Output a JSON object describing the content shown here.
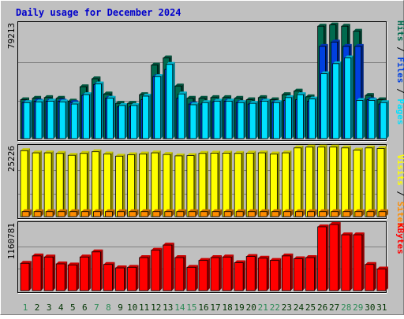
{
  "title": "Daily usage for December 2024",
  "colors": {
    "background": "#c0c0c0",
    "title": "#0000cc",
    "grid": "#808080",
    "hits": "#006a4e",
    "files": "#0040e0",
    "pages": "#00e0ff",
    "visits": "#ffff00",
    "sites": "#ff8c00",
    "kbytes": "#ff0000",
    "day_normal": "#003300",
    "day_weekend": "#2e8b57"
  },
  "chart_data": [
    {
      "type": "bar",
      "name": "usage",
      "ymax_label": "79213",
      "ylim": [
        0,
        79213
      ],
      "legend": [
        "Pages",
        "Files",
        "Hits"
      ],
      "x": [
        "1",
        "2",
        "3",
        "4",
        "5",
        "6",
        "7",
        "8",
        "9",
        "10",
        "11",
        "12",
        "13",
        "14",
        "15",
        "16",
        "17",
        "18",
        "19",
        "20",
        "21",
        "22",
        "23",
        "24",
        "25",
        "26",
        "27",
        "28",
        "29",
        "30",
        "31"
      ],
      "series": [
        {
          "name": "Hits",
          "values": [
            27000,
            28000,
            28500,
            28000,
            26000,
            36000,
            41500,
            31000,
            24500,
            24500,
            30500,
            51000,
            56000,
            36500,
            28000,
            28000,
            28500,
            28500,
            28000,
            27000,
            28500,
            27000,
            30500,
            33000,
            29000,
            78000,
            78900,
            78000,
            74500,
            30000,
            27000
          ]
        },
        {
          "name": "Files",
          "values": [
            25000,
            26000,
            26000,
            26000,
            25000,
            30000,
            37500,
            28000,
            22000,
            22000,
            27000,
            43000,
            48000,
            28000,
            24000,
            24000,
            25500,
            26000,
            25000,
            24000,
            26000,
            25000,
            26500,
            27000,
            26000,
            64000,
            67000,
            64000,
            64000,
            27000,
            24000
          ]
        },
        {
          "name": "Pages",
          "values": [
            25000,
            25500,
            26000,
            25500,
            24000,
            30500,
            38000,
            28000,
            23000,
            23000,
            29500,
            43000,
            51500,
            31000,
            23500,
            25000,
            26000,
            26000,
            25000,
            24500,
            26000,
            25000,
            28500,
            30500,
            27500,
            45000,
            52000,
            56000,
            26500,
            26500,
            25000
          ]
        }
      ]
    },
    {
      "type": "bar",
      "name": "visits",
      "ymax_label": "25226",
      "ylim": [
        0,
        25226
      ],
      "legend": [
        "Sites",
        "Visits"
      ],
      "x": [
        "1",
        "2",
        "3",
        "4",
        "5",
        "6",
        "7",
        "8",
        "9",
        "10",
        "11",
        "12",
        "13",
        "14",
        "15",
        "16",
        "17",
        "18",
        "19",
        "20",
        "21",
        "22",
        "23",
        "24",
        "25",
        "26",
        "27",
        "28",
        "29",
        "30",
        "31"
      ],
      "series": [
        {
          "name": "Visits",
          "values": [
            24000,
            23200,
            23200,
            23000,
            22300,
            23000,
            23600,
            22800,
            22000,
            22500,
            22800,
            23200,
            22600,
            22100,
            22200,
            23000,
            23100,
            23100,
            23000,
            23100,
            23200,
            22800,
            23200,
            25000,
            25300,
            25300,
            25300,
            25000,
            24200,
            25000,
            24800
          ]
        },
        {
          "name": "Sites",
          "values": [
            1800,
            1800,
            1800,
            1800,
            1800,
            1800,
            1800,
            1800,
            1800,
            1800,
            1800,
            1800,
            1800,
            1800,
            1800,
            1800,
            1800,
            1800,
            1800,
            1800,
            1800,
            1800,
            1800,
            1800,
            1800,
            1800,
            1800,
            1800,
            1800,
            1800,
            1800
          ]
        }
      ]
    },
    {
      "type": "bar",
      "name": "kbytes",
      "ymax_label": "1160781",
      "ylim": [
        0,
        1160781
      ],
      "legend": [
        "KBytes"
      ],
      "x": [
        "1",
        "2",
        "3",
        "4",
        "5",
        "6",
        "7",
        "8",
        "9",
        "10",
        "11",
        "12",
        "13",
        "14",
        "15",
        "16",
        "17",
        "18",
        "19",
        "20",
        "21",
        "22",
        "23",
        "24",
        "25",
        "26",
        "27",
        "28",
        "29",
        "30",
        "31"
      ],
      "series": [
        {
          "name": "KBytes",
          "values": [
            480000,
            610000,
            590000,
            470000,
            450000,
            590000,
            680000,
            460000,
            400000,
            410000,
            580000,
            710000,
            800000,
            580000,
            410000,
            530000,
            580000,
            590000,
            490000,
            600000,
            570000,
            530000,
            610000,
            560000,
            580000,
            1120000,
            1160781,
            980000,
            980000,
            460000,
            380000
          ]
        }
      ]
    }
  ],
  "weekend_days": [
    "1",
    "7",
    "8",
    "14",
    "15",
    "21",
    "22",
    "28",
    "29"
  ]
}
